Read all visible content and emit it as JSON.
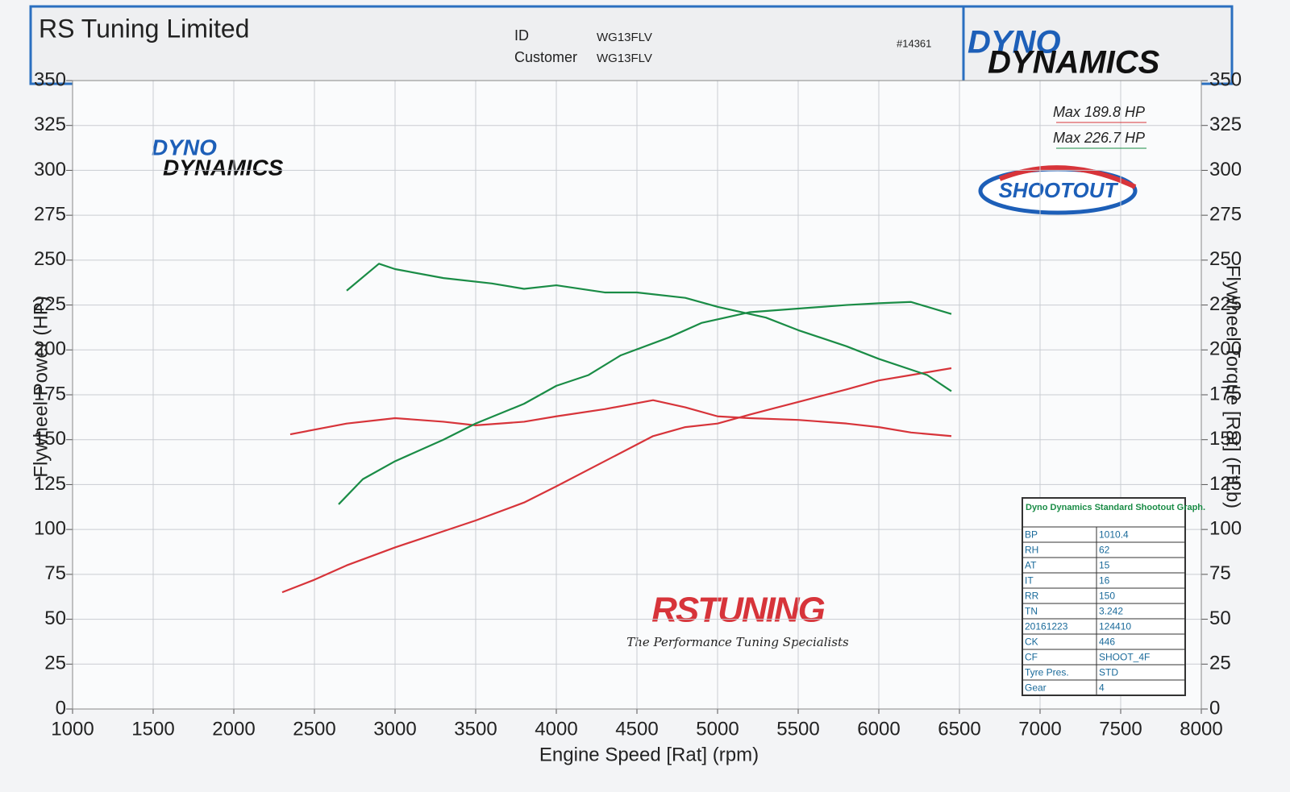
{
  "header": {
    "company": "RS Tuning Limited",
    "id_label": "ID",
    "id_value": "WG13FLV",
    "customer_label": "Customer",
    "customer_value": "WG13FLV",
    "number": "#14361"
  },
  "branding": {
    "dyno": "DYNO",
    "dynamics": "DYNAMICS",
    "shootout": "SHOOTOUT",
    "rstuning": "RSTUNING",
    "tagline": "The Performance Tuning Specialists"
  },
  "info_table": {
    "title": "Dyno Dynamics Standard Shootout Graph.",
    "rows": [
      [
        "BP",
        "1010.4"
      ],
      [
        "RH",
        "62"
      ],
      [
        "AT",
        "15"
      ],
      [
        "IT",
        "16"
      ],
      [
        "RR",
        "150"
      ],
      [
        "TN",
        "3.242"
      ],
      [
        "20161223",
        "124410"
      ],
      [
        "CK",
        "446"
      ],
      [
        "CF",
        "SHOOT_4F"
      ],
      [
        "Tyre Pres.",
        "STD"
      ],
      [
        "Gear",
        "4"
      ]
    ]
  },
  "chart_data": {
    "type": "line",
    "x_label": "Engine Speed [Rat] (rpm)",
    "y_label": "Flywheel Power (HP)",
    "y2_label": "Flywheel Torque [Rat] (FtLb)",
    "xlim": [
      1000,
      8000
    ],
    "xticks": [
      1000,
      1500,
      2000,
      2500,
      3000,
      3500,
      4000,
      4500,
      5000,
      5500,
      6000,
      6500,
      7000,
      7500,
      8000
    ],
    "ylim": [
      0,
      350
    ],
    "yticks": [
      0,
      25,
      50,
      75,
      100,
      125,
      150,
      175,
      200,
      225,
      250,
      275,
      300,
      325,
      350
    ],
    "y2lim": [
      0,
      350
    ],
    "y2ticks": [
      0,
      25,
      50,
      75,
      100,
      125,
      150,
      175,
      200,
      225,
      250,
      275,
      300,
      325,
      350
    ],
    "grid": true,
    "annotations": [
      {
        "text": "Max 189.8 HP",
        "color": "#d7343a"
      },
      {
        "text": "Max 226.7 HP",
        "color": "#1a8c46"
      }
    ],
    "series": [
      {
        "color": "#d7343a",
        "x": [
          2300,
          2500,
          2700,
          3000,
          3300,
          3500,
          3800,
          4000,
          4300,
          4600,
          4800,
          5000,
          5200,
          5500,
          5800,
          6000,
          6200,
          6450
        ],
        "values": [
          65,
          72,
          80,
          90,
          99,
          105,
          115,
          124,
          138,
          152,
          157,
          159,
          164,
          171,
          178,
          183,
          186,
          189.8
        ]
      },
      {
        "color": "#d7343a",
        "axis": "y2",
        "x": [
          2350,
          2700,
          3000,
          3300,
          3500,
          3800,
          4000,
          4300,
          4600,
          4800,
          5000,
          5200,
          5500,
          5800,
          6000,
          6200,
          6450
        ],
        "values": [
          153,
          159,
          162,
          160,
          158,
          160,
          163,
          167,
          172,
          168,
          163,
          162,
          161,
          159,
          157,
          154,
          152
        ]
      },
      {
        "color": "#1a8c46",
        "x": [
          2650,
          2800,
          3000,
          3300,
          3500,
          3800,
          4000,
          4200,
          4400,
          4700,
          4900,
          5200,
          5500,
          5800,
          6000,
          6200,
          6450
        ],
        "values": [
          114,
          128,
          138,
          150,
          159,
          170,
          180,
          186,
          197,
          207,
          215,
          221,
          223,
          225,
          226,
          226.7,
          220
        ]
      },
      {
        "color": "#1a8c46",
        "axis": "y2",
        "x": [
          2700,
          2900,
          3000,
          3300,
          3600,
          3800,
          4000,
          4300,
          4500,
          4800,
          5000,
          5300,
          5500,
          5800,
          6000,
          6300,
          6450
        ],
        "values": [
          233,
          248,
          245,
          240,
          237,
          234,
          236,
          232,
          232,
          229,
          224,
          218,
          211,
          202,
          195,
          186,
          177
        ]
      }
    ]
  }
}
